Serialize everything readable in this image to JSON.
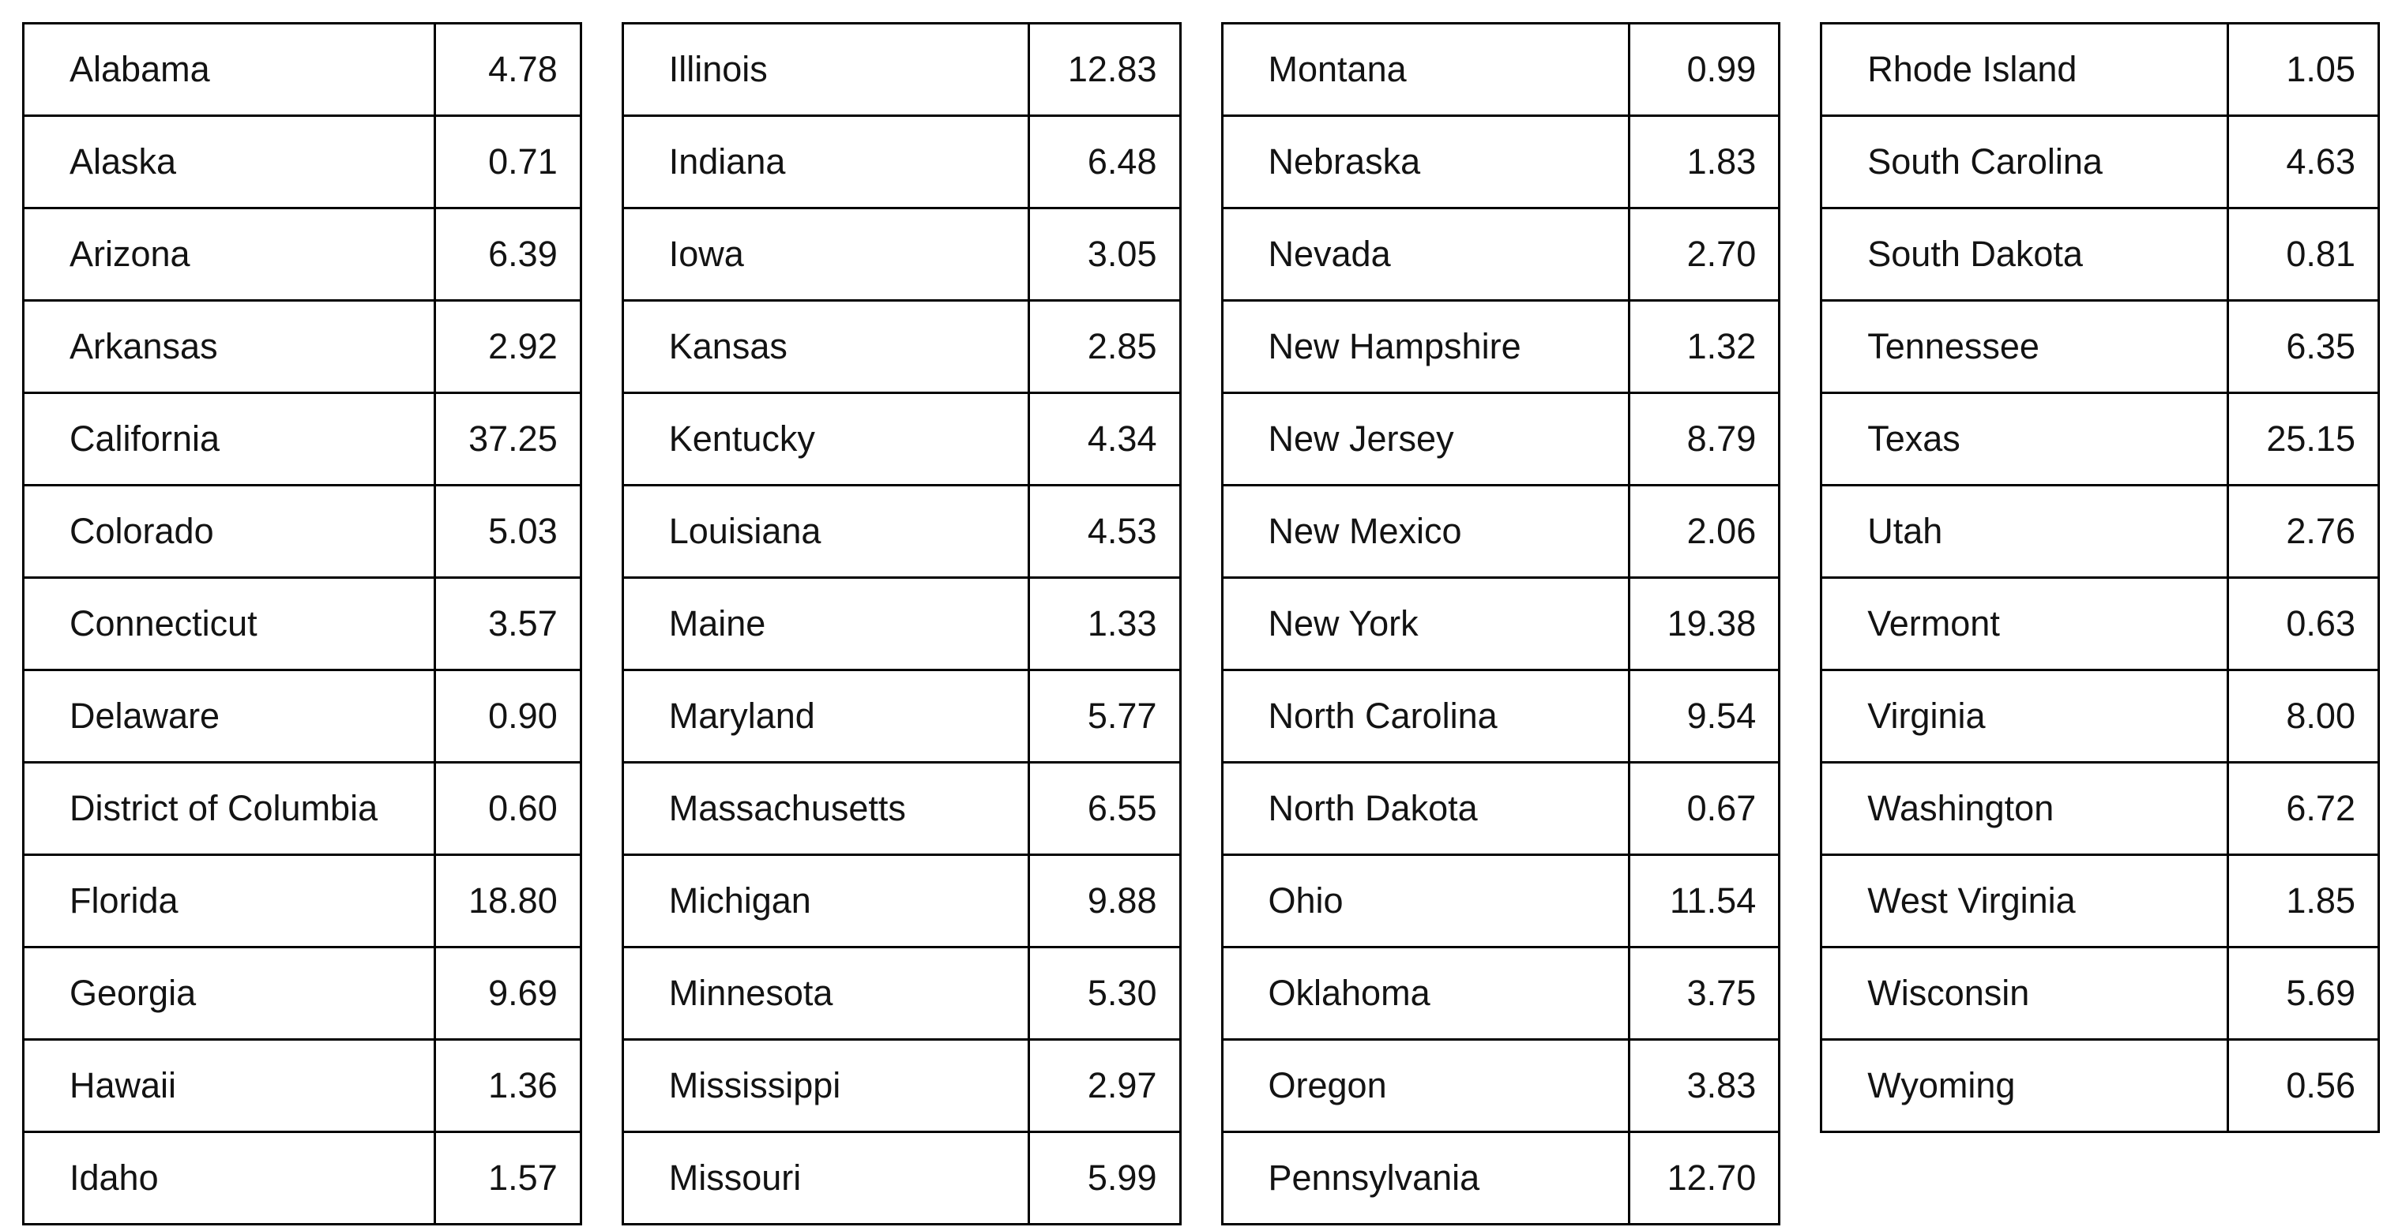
{
  "chart_data": {
    "type": "table",
    "columns": [
      "state",
      "value"
    ],
    "tables": [
      {
        "rows": [
          {
            "state": "Alabama",
            "value": "4.78"
          },
          {
            "state": "Alaska",
            "value": "0.71"
          },
          {
            "state": "Arizona",
            "value": "6.39"
          },
          {
            "state": "Arkansas",
            "value": "2.92"
          },
          {
            "state": "California",
            "value": "37.25"
          },
          {
            "state": "Colorado",
            "value": "5.03"
          },
          {
            "state": "Connecticut",
            "value": "3.57"
          },
          {
            "state": "Delaware",
            "value": "0.90"
          },
          {
            "state": "District of Columbia",
            "value": "0.60"
          },
          {
            "state": "Florida",
            "value": "18.80"
          },
          {
            "state": "Georgia",
            "value": "9.69"
          },
          {
            "state": "Hawaii",
            "value": "1.36"
          },
          {
            "state": "Idaho",
            "value": "1.57"
          }
        ]
      },
      {
        "rows": [
          {
            "state": "Illinois",
            "value": "12.83"
          },
          {
            "state": "Indiana",
            "value": "6.48"
          },
          {
            "state": "Iowa",
            "value": "3.05"
          },
          {
            "state": "Kansas",
            "value": "2.85"
          },
          {
            "state": "Kentucky",
            "value": "4.34"
          },
          {
            "state": "Louisiana",
            "value": "4.53"
          },
          {
            "state": "Maine",
            "value": "1.33"
          },
          {
            "state": "Maryland",
            "value": "5.77"
          },
          {
            "state": "Massachusetts",
            "value": "6.55"
          },
          {
            "state": "Michigan",
            "value": "9.88"
          },
          {
            "state": "Minnesota",
            "value": "5.30"
          },
          {
            "state": "Mississippi",
            "value": "2.97"
          },
          {
            "state": "Missouri",
            "value": "5.99"
          }
        ]
      },
      {
        "rows": [
          {
            "state": "Montana",
            "value": "0.99"
          },
          {
            "state": "Nebraska",
            "value": "1.83"
          },
          {
            "state": "Nevada",
            "value": "2.70"
          },
          {
            "state": "New Hampshire",
            "value": "1.32"
          },
          {
            "state": "New Jersey",
            "value": "8.79"
          },
          {
            "state": "New Mexico",
            "value": "2.06"
          },
          {
            "state": "New York",
            "value": "19.38"
          },
          {
            "state": "North Carolina",
            "value": "9.54"
          },
          {
            "state": "North Dakota",
            "value": "0.67"
          },
          {
            "state": "Ohio",
            "value": "11.54"
          },
          {
            "state": "Oklahoma",
            "value": "3.75"
          },
          {
            "state": "Oregon",
            "value": "3.83"
          },
          {
            "state": "Pennsylvania",
            "value": "12.70"
          }
        ]
      },
      {
        "rows": [
          {
            "state": "Rhode Island",
            "value": "1.05"
          },
          {
            "state": "South Carolina",
            "value": "4.63"
          },
          {
            "state": "South Dakota",
            "value": "0.81"
          },
          {
            "state": "Tennessee",
            "value": "6.35"
          },
          {
            "state": "Texas",
            "value": "25.15"
          },
          {
            "state": "Utah",
            "value": "2.76"
          },
          {
            "state": "Vermont",
            "value": "0.63"
          },
          {
            "state": "Virginia",
            "value": "8.00"
          },
          {
            "state": "Washington",
            "value": "6.72"
          },
          {
            "state": "West Virginia",
            "value": "1.85"
          },
          {
            "state": "Wisconsin",
            "value": "5.69"
          },
          {
            "state": "Wyoming",
            "value": "0.56"
          }
        ]
      }
    ]
  }
}
